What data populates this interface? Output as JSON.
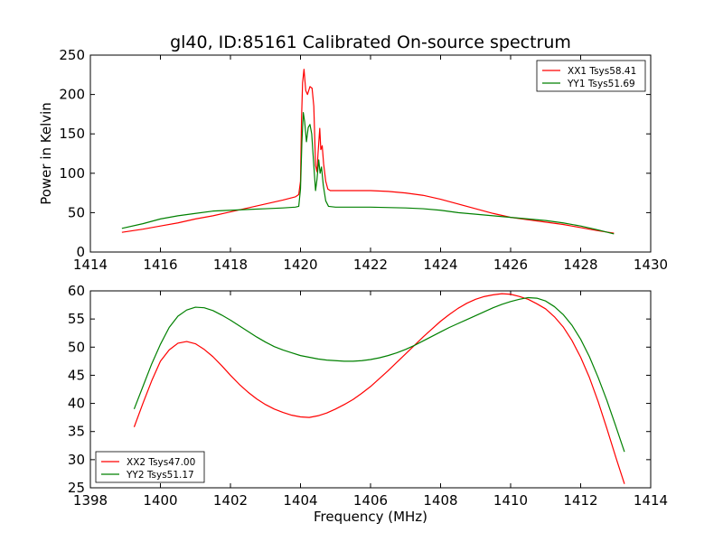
{
  "chart_data": [
    {
      "type": "line",
      "title": "gl40, ID:85161 Calibrated On-source spectrum",
      "xlabel": "",
      "ylabel": "Power in Kelvin",
      "xlim": [
        1414,
        1430
      ],
      "ylim": [
        0,
        250
      ],
      "xticks": [
        1414,
        1416,
        1418,
        1420,
        1422,
        1424,
        1426,
        1428,
        1430
      ],
      "yticks": [
        0,
        50,
        100,
        150,
        200,
        250
      ],
      "grid": false,
      "legend": "top-right",
      "series": [
        {
          "name": "XX1 Tsys58.41",
          "color": "#ff0000",
          "points": [
            [
              1414.9,
              25
            ],
            [
              1415.5,
              29
            ],
            [
              1416,
              33
            ],
            [
              1416.5,
              37
            ],
            [
              1417,
              42
            ],
            [
              1417.5,
              46
            ],
            [
              1418,
              51
            ],
            [
              1418.5,
              56
            ],
            [
              1419,
              61
            ],
            [
              1419.5,
              66
            ],
            [
              1419.85,
              70
            ],
            [
              1419.95,
              73
            ],
            [
              1420,
              90
            ],
            [
              1420.03,
              170
            ],
            [
              1420.06,
              215
            ],
            [
              1420.1,
              232
            ],
            [
              1420.15,
              205
            ],
            [
              1420.2,
              200
            ],
            [
              1420.27,
              210
            ],
            [
              1420.33,
              208
            ],
            [
              1420.38,
              185
            ],
            [
              1420.43,
              110
            ],
            [
              1420.47,
              102
            ],
            [
              1420.5,
              125
            ],
            [
              1420.55,
              157
            ],
            [
              1420.58,
              130
            ],
            [
              1420.62,
              135
            ],
            [
              1420.66,
              112
            ],
            [
              1420.72,
              90
            ],
            [
              1420.78,
              80
            ],
            [
              1420.85,
              78
            ],
            [
              1421.5,
              78
            ],
            [
              1422,
              78
            ],
            [
              1422.5,
              77
            ],
            [
              1423,
              75
            ],
            [
              1423.5,
              72
            ],
            [
              1424,
              67
            ],
            [
              1424.5,
              61
            ],
            [
              1425,
              55
            ],
            [
              1425.5,
              49
            ],
            [
              1426,
              44
            ],
            [
              1426.5,
              41
            ],
            [
              1427,
              38
            ],
            [
              1427.5,
              35
            ],
            [
              1428,
              31
            ],
            [
              1428.5,
              27
            ],
            [
              1428.95,
              24
            ]
          ]
        },
        {
          "name": "YY1 Tsys51.69",
          "color": "#008000",
          "points": [
            [
              1414.9,
              30
            ],
            [
              1415.5,
              36
            ],
            [
              1416,
              42
            ],
            [
              1416.5,
              46
            ],
            [
              1417,
              49
            ],
            [
              1417.5,
              52
            ],
            [
              1418,
              53
            ],
            [
              1418.5,
              54
            ],
            [
              1419,
              55
            ],
            [
              1419.5,
              56
            ],
            [
              1419.85,
              57
            ],
            [
              1419.95,
              58
            ],
            [
              1420,
              80
            ],
            [
              1420.04,
              140
            ],
            [
              1420.08,
              177
            ],
            [
              1420.12,
              165
            ],
            [
              1420.17,
              140
            ],
            [
              1420.22,
              158
            ],
            [
              1420.27,
              162
            ],
            [
              1420.32,
              150
            ],
            [
              1420.38,
              110
            ],
            [
              1420.43,
              78
            ],
            [
              1420.47,
              92
            ],
            [
              1420.52,
              117
            ],
            [
              1420.56,
              100
            ],
            [
              1420.6,
              108
            ],
            [
              1420.65,
              85
            ],
            [
              1420.72,
              65
            ],
            [
              1420.8,
              58
            ],
            [
              1421,
              57
            ],
            [
              1422,
              57
            ],
            [
              1423,
              56
            ],
            [
              1423.5,
              55
            ],
            [
              1424,
              53
            ],
            [
              1424.5,
              50
            ],
            [
              1425,
              48
            ],
            [
              1425.5,
              46
            ],
            [
              1426,
              44
            ],
            [
              1426.5,
              42
            ],
            [
              1427,
              40
            ],
            [
              1427.5,
              37
            ],
            [
              1428,
              33
            ],
            [
              1428.5,
              28
            ],
            [
              1428.95,
              23
            ]
          ]
        }
      ]
    },
    {
      "type": "line",
      "title": "",
      "xlabel": "Frequency (MHz)",
      "ylabel": "",
      "xlim": [
        1398,
        1414
      ],
      "ylim": [
        25,
        60
      ],
      "xticks": [
        1398,
        1400,
        1402,
        1404,
        1406,
        1408,
        1410,
        1412,
        1414
      ],
      "yticks": [
        25,
        30,
        35,
        40,
        45,
        50,
        55,
        60
      ],
      "grid": false,
      "legend": "bottom-left",
      "series": [
        {
          "name": "XX2 Tsys47.00",
          "color": "#ff0000",
          "points": [
            [
              1399.25,
              35.8
            ],
            [
              1399.5,
              40
            ],
            [
              1399.75,
              44
            ],
            [
              1400,
              47.5
            ],
            [
              1400.25,
              49.5
            ],
            [
              1400.5,
              50.7
            ],
            [
              1400.75,
              51
            ],
            [
              1401,
              50.6
            ],
            [
              1401.25,
              49.6
            ],
            [
              1401.5,
              48.3
            ],
            [
              1401.75,
              46.7
            ],
            [
              1402,
              45
            ],
            [
              1402.25,
              43.4
            ],
            [
              1402.5,
              42
            ],
            [
              1402.75,
              40.8
            ],
            [
              1403,
              39.8
            ],
            [
              1403.25,
              39
            ],
            [
              1403.5,
              38.4
            ],
            [
              1403.75,
              37.9
            ],
            [
              1404,
              37.6
            ],
            [
              1404.25,
              37.5
            ],
            [
              1404.5,
              37.8
            ],
            [
              1404.75,
              38.3
            ],
            [
              1405,
              39
            ],
            [
              1405.25,
              39.8
            ],
            [
              1405.5,
              40.7
            ],
            [
              1405.75,
              41.8
            ],
            [
              1406,
              43
            ],
            [
              1406.25,
              44.4
            ],
            [
              1406.5,
              45.8
            ],
            [
              1406.75,
              47.3
            ],
            [
              1407,
              48.8
            ],
            [
              1407.25,
              50.3
            ],
            [
              1407.5,
              51.8
            ],
            [
              1407.75,
              53.2
            ],
            [
              1408,
              54.6
            ],
            [
              1408.25,
              55.8
            ],
            [
              1408.5,
              56.9
            ],
            [
              1408.75,
              57.8
            ],
            [
              1409,
              58.5
            ],
            [
              1409.25,
              59
            ],
            [
              1409.5,
              59.3
            ],
            [
              1409.75,
              59.5
            ],
            [
              1410,
              59.4
            ],
            [
              1410.25,
              59
            ],
            [
              1410.5,
              58.5
            ],
            [
              1410.75,
              57.7
            ],
            [
              1411,
              56.8
            ],
            [
              1411.25,
              55.4
            ],
            [
              1411.5,
              53.6
            ],
            [
              1411.75,
              51.2
            ],
            [
              1412,
              48.2
            ],
            [
              1412.25,
              44.6
            ],
            [
              1412.5,
              40.3
            ],
            [
              1412.75,
              35.5
            ],
            [
              1413,
              30.5
            ],
            [
              1413.25,
              25.7
            ]
          ]
        },
        {
          "name": "YY2 Tsys51.17",
          "color": "#008000",
          "points": [
            [
              1399.25,
              39
            ],
            [
              1399.5,
              43
            ],
            [
              1399.75,
              47
            ],
            [
              1400,
              50.5
            ],
            [
              1400.25,
              53.5
            ],
            [
              1400.5,
              55.5
            ],
            [
              1400.75,
              56.6
            ],
            [
              1401,
              57.1
            ],
            [
              1401.25,
              57
            ],
            [
              1401.5,
              56.5
            ],
            [
              1401.75,
              55.7
            ],
            [
              1402,
              54.8
            ],
            [
              1402.25,
              53.8
            ],
            [
              1402.5,
              52.8
            ],
            [
              1402.75,
              51.8
            ],
            [
              1403,
              50.9
            ],
            [
              1403.25,
              50.1
            ],
            [
              1403.5,
              49.5
            ],
            [
              1403.75,
              49
            ],
            [
              1404,
              48.5
            ],
            [
              1404.25,
              48.2
            ],
            [
              1404.5,
              47.9
            ],
            [
              1404.75,
              47.7
            ],
            [
              1405,
              47.6
            ],
            [
              1405.25,
              47.5
            ],
            [
              1405.5,
              47.5
            ],
            [
              1405.75,
              47.6
            ],
            [
              1406,
              47.8
            ],
            [
              1406.25,
              48.1
            ],
            [
              1406.5,
              48.5
            ],
            [
              1406.75,
              49
            ],
            [
              1407,
              49.6
            ],
            [
              1407.25,
              50.3
            ],
            [
              1407.5,
              51.1
            ],
            [
              1407.75,
              51.9
            ],
            [
              1408,
              52.7
            ],
            [
              1408.25,
              53.5
            ],
            [
              1408.5,
              54.2
            ],
            [
              1408.75,
              54.9
            ],
            [
              1409,
              55.6
            ],
            [
              1409.25,
              56.3
            ],
            [
              1409.5,
              57
            ],
            [
              1409.75,
              57.6
            ],
            [
              1410,
              58.1
            ],
            [
              1410.25,
              58.5
            ],
            [
              1410.5,
              58.8
            ],
            [
              1410.75,
              58.7
            ],
            [
              1411,
              58.2
            ],
            [
              1411.25,
              57.2
            ],
            [
              1411.5,
              55.8
            ],
            [
              1411.75,
              53.9
            ],
            [
              1412,
              51.4
            ],
            [
              1412.25,
              48.3
            ],
            [
              1412.5,
              44.6
            ],
            [
              1412.75,
              40.5
            ],
            [
              1413,
              36
            ],
            [
              1413.25,
              31.4
            ]
          ]
        }
      ]
    }
  ]
}
